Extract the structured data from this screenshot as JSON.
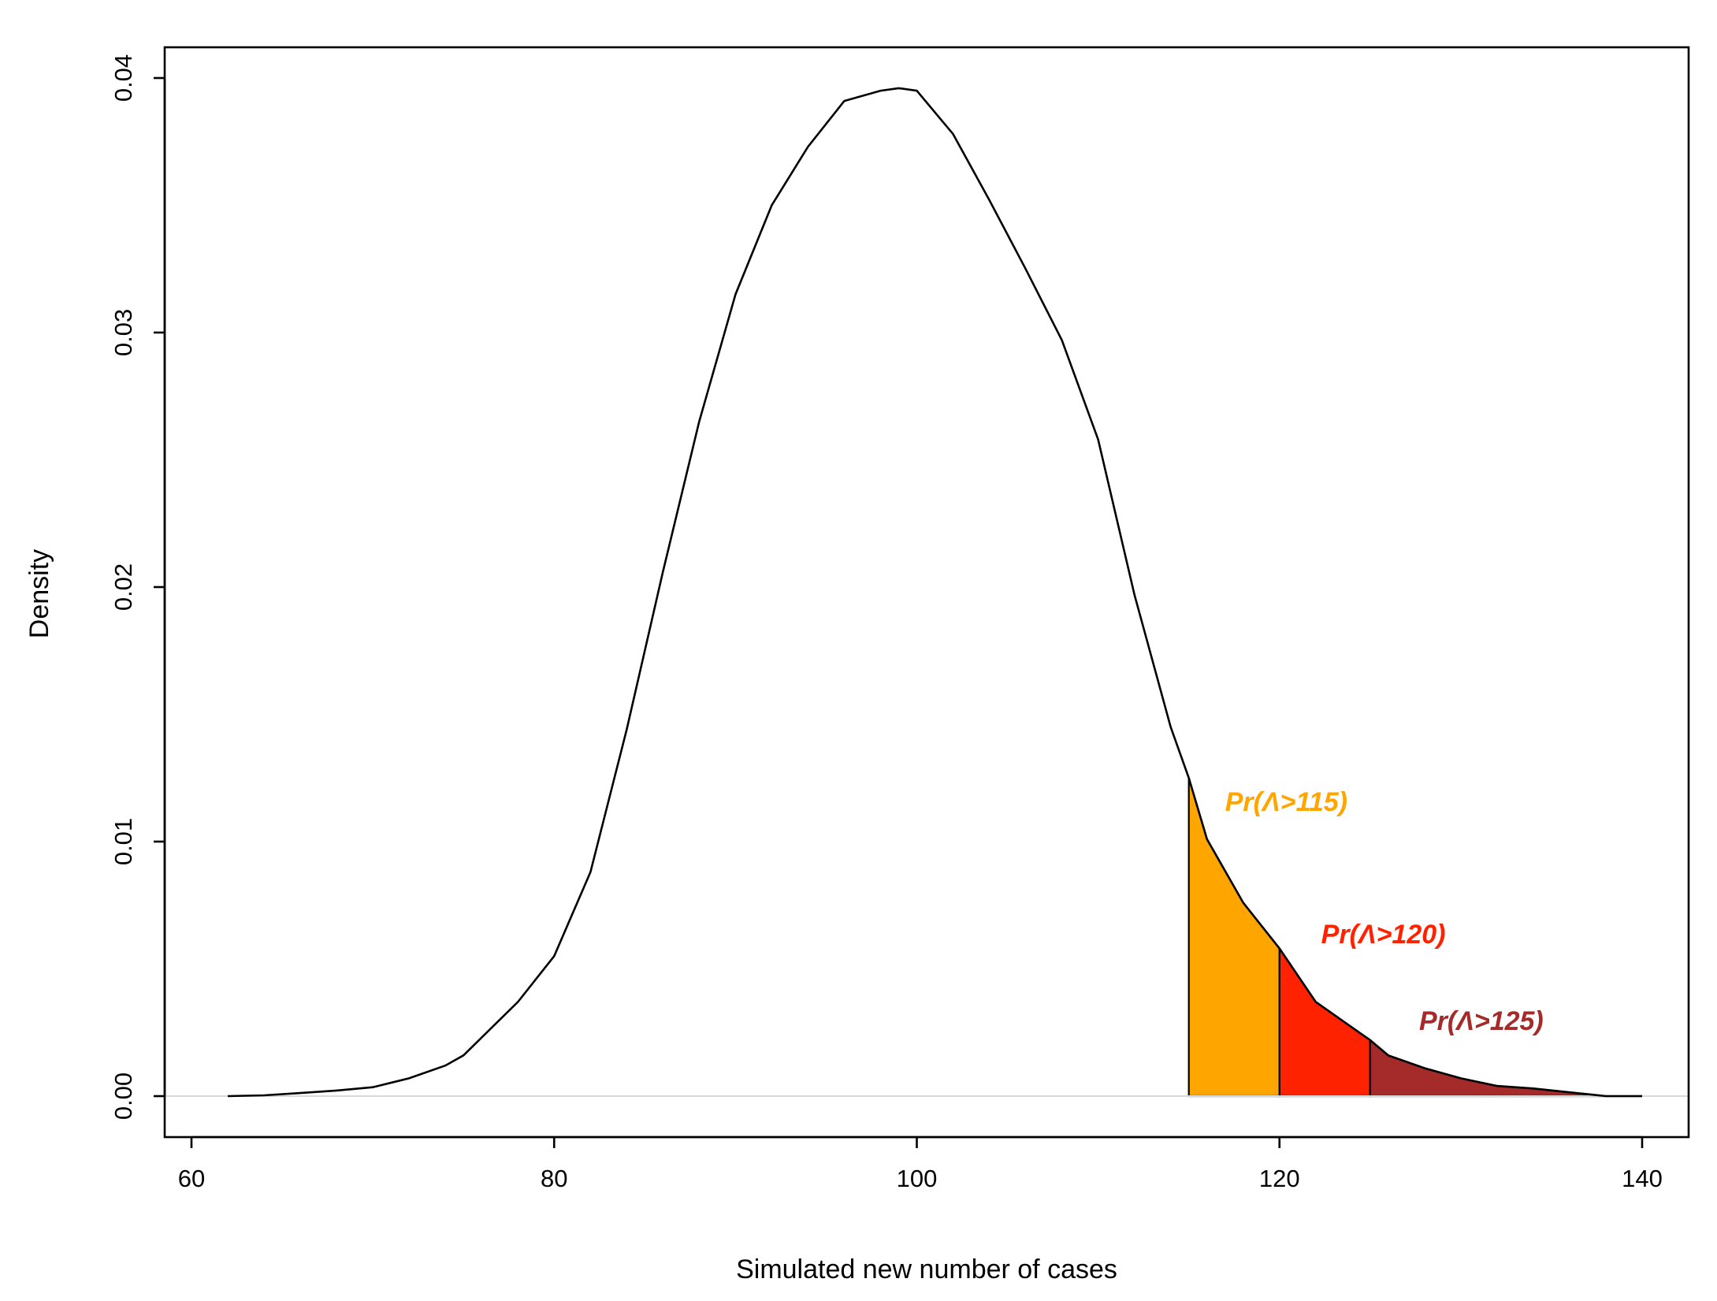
{
  "chart_data": {
    "type": "area",
    "xlabel": "Simulated new number of cases",
    "ylabel": "Density",
    "xlim": [
      60,
      140
    ],
    "ylim": [
      0,
      0.04
    ],
    "x_ticks": [
      "60",
      "80",
      "100",
      "120",
      "140"
    ],
    "y_ticks": [
      "0.00",
      "0.01",
      "0.02",
      "0.03",
      "0.04"
    ],
    "x_tick_values": [
      60,
      80,
      100,
      120,
      140
    ],
    "y_tick_values": [
      0,
      0.01,
      0.02,
      0.03,
      0.04
    ],
    "grid": false,
    "density_curve": {
      "x": [
        62,
        64,
        66,
        68,
        70,
        72,
        74,
        75,
        76,
        78,
        80,
        82,
        84,
        86,
        88,
        90,
        92,
        94,
        96,
        98,
        99,
        100,
        102,
        104,
        106,
        108,
        110,
        112,
        114,
        115,
        116,
        118,
        120,
        122,
        124,
        125,
        126,
        128,
        130,
        132,
        134,
        136,
        138,
        140
      ],
      "y": [
        0.0,
        3e-05,
        0.00012,
        0.00022,
        0.00035,
        0.0007,
        0.0012,
        0.0016,
        0.0023,
        0.0037,
        0.0055,
        0.0088,
        0.0144,
        0.0206,
        0.0265,
        0.0315,
        0.035,
        0.0373,
        0.0391,
        0.0395,
        0.0396,
        0.0395,
        0.0378,
        0.0352,
        0.0325,
        0.0297,
        0.0258,
        0.0197,
        0.0145,
        0.0125,
        0.0101,
        0.0076,
        0.0058,
        0.0037,
        0.0027,
        0.0022,
        0.0016,
        0.0011,
        0.0007,
        0.0004,
        0.0003,
        0.00015,
        0.0,
        0.0
      ]
    },
    "shaded_regions": [
      {
        "from": 115,
        "to": 120,
        "color": "#FFA500",
        "label": "Pr(Λ>115)",
        "label_x": 117,
        "label_y": 0.0112
      },
      {
        "from": 120,
        "to": 125,
        "color": "#FF2200",
        "label": "Pr(Λ>120)",
        "label_x": 122.3,
        "label_y": 0.006
      },
      {
        "from": 125,
        "to": 140,
        "color": "#A52A2A",
        "label": "Pr(Λ>125)",
        "label_x": 127.7,
        "label_y": 0.0026
      }
    ],
    "line_color": "#000000",
    "baseline_color": "#d9d9d9"
  }
}
